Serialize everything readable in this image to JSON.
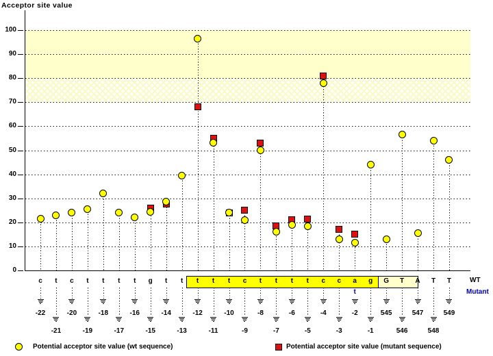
{
  "title": "Acceptor site value",
  "legend": {
    "wt_icon": "yellow-circle-marker",
    "wt_label": "Potential acceptor site value (wt sequence)",
    "mutant_icon": "red-square-marker",
    "mutant_label": "Potential acceptor site value (mutant sequence)"
  },
  "row_labels": {
    "wt": "WT",
    "mutant": "Mutant"
  },
  "colors": {
    "wt_marker": "#ffff00",
    "mutant_marker": "#dd1111",
    "high_score_band": "#ffffcc",
    "acceptor_box": "#ffff00",
    "gt_box": "#ffffcc",
    "mutant_text": "#0000bb"
  },
  "chart_data": {
    "type": "scatter",
    "title": "Acceptor site value",
    "ylabel": "Acceptor site value",
    "ylim": [
      0,
      100
    ],
    "y_ticks": [
      0,
      10,
      20,
      30,
      40,
      50,
      60,
      70,
      80,
      90,
      100
    ],
    "grid": "dotted horizontal line every 10 units",
    "legend_position": "bottom",
    "bands": [
      {
        "from": 80,
        "to": 100,
        "style": "solid",
        "color": "#ffffcc"
      },
      {
        "from": 70,
        "to": 80,
        "style": "hatch",
        "color": "#ffffcc"
      }
    ],
    "x_positions": [
      "-22",
      "-21",
      "-20",
      "-19",
      "-18",
      "-17",
      "-16",
      "-15",
      "-14",
      "-13",
      "-12",
      "-11",
      "-10",
      "-9",
      "-8",
      "-7",
      "-6",
      "-5",
      "-4",
      "-3",
      "-2",
      "-1",
      "545",
      "546",
      "547",
      "548",
      "549"
    ],
    "wt_sequence": [
      "c",
      "t",
      "c",
      "t",
      "t",
      "t",
      "t",
      "g",
      "t",
      "t",
      "t",
      "t",
      "t",
      "c",
      "t",
      "t",
      "t",
      "t",
      "c",
      "c",
      "a",
      "g",
      "G",
      "T",
      "A",
      "T",
      "T"
    ],
    "series": [
      {
        "name": "wt",
        "marker": "yellow-circle",
        "values": [
          21.5,
          23,
          24,
          25.5,
          32,
          24,
          22,
          24.5,
          28.5,
          39.5,
          96.5,
          53,
          24,
          21,
          50,
          16,
          19,
          18.5,
          78,
          13,
          11.5,
          44,
          13,
          56.5,
          15.5,
          54,
          46
        ]
      },
      {
        "name": "mutant",
        "marker": "red-square",
        "values": [
          null,
          null,
          null,
          null,
          null,
          null,
          null,
          26,
          27.5,
          null,
          68,
          55,
          24,
          25,
          53,
          18.5,
          21,
          21.5,
          81,
          17,
          15,
          null,
          null,
          null,
          null,
          null,
          null
        ]
      }
    ],
    "mutant_equal_marker_positions": [
      "-10"
    ],
    "mutant_base_changes": [
      {
        "position": "-2",
        "wt_base": "a",
        "mutant_base": "t"
      }
    ],
    "acceptor_box_positions": [
      "-12",
      "-1"
    ],
    "gt_box_positions": [
      "545",
      "546"
    ]
  }
}
